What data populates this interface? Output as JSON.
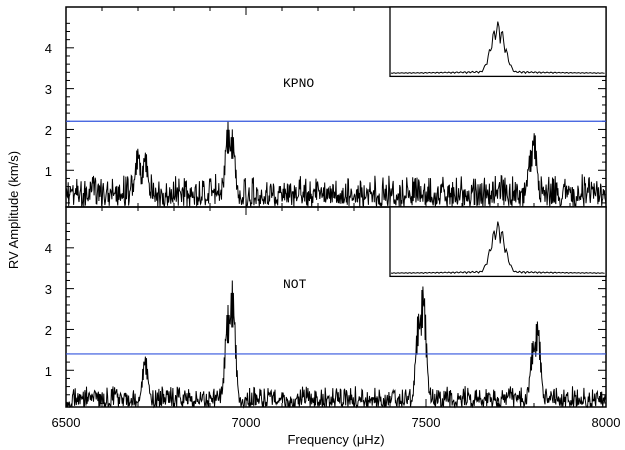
{
  "chart_data": {
    "type": "line",
    "xlabel": "Frequency (μHz)",
    "ylabel": "RV Amplitude (km/s)",
    "xlim": [
      6500,
      8000
    ],
    "x_ticks": [
      "6500",
      "7000",
      "7500",
      "8000"
    ],
    "panels": [
      {
        "label": "KPNO",
        "ylim": [
          0.1,
          5.0
        ],
        "y_ticks": [
          "1",
          "2",
          "3",
          "4"
        ],
        "threshold": 2.2,
        "threshold_color": "#3355dd",
        "noise_level": 0.45,
        "peaks": [
          {
            "x": 6700,
            "y": 1.6
          },
          {
            "x": 6720,
            "y": 1.5
          },
          {
            "x": 6950,
            "y": 2.2
          },
          {
            "x": 6962,
            "y": 2.0
          },
          {
            "x": 7800,
            "y": 2.0
          },
          {
            "x": 7790,
            "y": 1.5
          }
        ],
        "inset": {
          "x_range": [
            7400,
            8000
          ],
          "y_range": [
            3.3,
            5.0
          ],
          "peak_height": 4.6
        }
      },
      {
        "label": "NOT",
        "ylim": [
          0.1,
          5.0
        ],
        "y_ticks": [
          "1",
          "2",
          "3",
          "4"
        ],
        "threshold": 1.4,
        "threshold_color": "#3355dd",
        "noise_level": 0.3,
        "peaks": [
          {
            "x": 6720,
            "y": 1.4
          },
          {
            "x": 6950,
            "y": 2.6
          },
          {
            "x": 6962,
            "y": 3.2
          },
          {
            "x": 7480,
            "y": 2.5
          },
          {
            "x": 7492,
            "y": 3.2
          },
          {
            "x": 7810,
            "y": 2.3
          },
          {
            "x": 7798,
            "y": 1.8
          }
        ],
        "inset": {
          "x_range": [
            7400,
            8000
          ],
          "y_range": [
            3.3,
            5.0
          ],
          "peak_height": 4.6
        }
      }
    ]
  }
}
